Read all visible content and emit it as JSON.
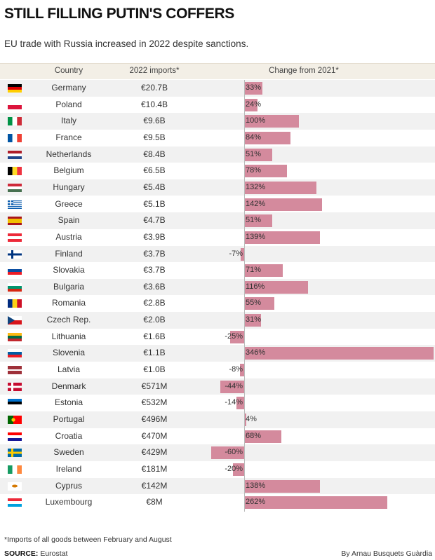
{
  "header": {
    "title": "STILL FILLING PUTIN'S COFFERS",
    "subtitle": "EU trade with Russia increased in 2022 despite sanctions."
  },
  "table": {
    "col_country": "Country",
    "col_imports": "2022 imports*",
    "col_change": "Change from 2021*"
  },
  "chart_data": {
    "type": "bar",
    "orientation": "horizontal",
    "title": "STILL FILLING PUTIN'S COFFERS",
    "subtitle": "EU trade with Russia increased in 2022 despite sanctions.",
    "xlabel": "Change from 2021*",
    "unit": "%",
    "categories": [
      "Germany",
      "Poland",
      "Italy",
      "France",
      "Netherlands",
      "Belgium",
      "Hungary",
      "Greece",
      "Spain",
      "Austria",
      "Finland",
      "Slovakia",
      "Bulgaria",
      "Romania",
      "Czech Rep.",
      "Lithuania",
      "Slovenia",
      "Latvia",
      "Denmark",
      "Estonia",
      "Portugal",
      "Croatia",
      "Sweden",
      "Ireland",
      "Cyprus",
      "Luxembourg"
    ],
    "imports": [
      "€20.7B",
      "€10.4B",
      "€9.6B",
      "€9.5B",
      "€8.4B",
      "€6.5B",
      "€5.4B",
      "€5.1B",
      "€4.7B",
      "€3.9B",
      "€3.7B",
      "€3.7B",
      "€3.6B",
      "€2.8B",
      "€2.0B",
      "€1.6B",
      "€1.1B",
      "€1.0B",
      "€571M",
      "€532M",
      "€496M",
      "€470M",
      "€429M",
      "€181M",
      "€142M",
      "€8M"
    ],
    "values": [
      33,
      24,
      100,
      84,
      51,
      78,
      132,
      142,
      51,
      139,
      -7,
      71,
      116,
      55,
      31,
      -25,
      346,
      -8,
      -44,
      -14,
      4,
      68,
      -60,
      -20,
      138,
      262
    ],
    "labels": [
      "33%",
      "24%",
      "100%",
      "84%",
      "51%",
      "78%",
      "132%",
      "142%",
      "51%",
      "139%",
      "-7%",
      "71%",
      "116%",
      "55%",
      "31%",
      "-25%",
      "346%",
      "-8%",
      "-44%",
      "-14%",
      "4%",
      "68%",
      "-60%",
      "-20%",
      "138%",
      "262%"
    ],
    "bar_color": "#d48a9d",
    "grid": false
  },
  "flags": {
    "Germany": {
      "dir": "h",
      "colors": [
        "#000000",
        "#dd0000",
        "#ffce00"
      ]
    },
    "Poland": {
      "dir": "h",
      "colors": [
        "#ffffff",
        "#dc143c"
      ]
    },
    "Italy": {
      "dir": "v",
      "colors": [
        "#009246",
        "#ffffff",
        "#ce2b37"
      ]
    },
    "France": {
      "dir": "v",
      "colors": [
        "#0055a4",
        "#ffffff",
        "#ef4135"
      ]
    },
    "Netherlands": {
      "dir": "h",
      "colors": [
        "#ae1c28",
        "#ffffff",
        "#21468b"
      ]
    },
    "Belgium": {
      "dir": "v",
      "colors": [
        "#000000",
        "#fdda24",
        "#ef3340"
      ]
    },
    "Hungary": {
      "dir": "h",
      "colors": [
        "#ce2939",
        "#ffffff",
        "#477050"
      ]
    },
    "Greece": {
      "dir": "stripes",
      "colors": [
        "#0d5eaf",
        "#ffffff"
      ]
    },
    "Spain": {
      "dir": "h3",
      "colors": [
        "#aa151b",
        "#f1bf00",
        "#aa151b"
      ]
    },
    "Austria": {
      "dir": "h",
      "colors": [
        "#ed2939",
        "#ffffff",
        "#ed2939"
      ]
    },
    "Finland": {
      "dir": "nordic",
      "colors": [
        "#ffffff",
        "#003580"
      ]
    },
    "Slovakia": {
      "dir": "h",
      "colors": [
        "#ffffff",
        "#0b4ea2",
        "#ee1c25"
      ]
    },
    "Bulgaria": {
      "dir": "h",
      "colors": [
        "#ffffff",
        "#00966e",
        "#d62612"
      ]
    },
    "Romania": {
      "dir": "v",
      "colors": [
        "#002b7f",
        "#fcd116",
        "#ce1126"
      ]
    },
    "Czech Rep.": {
      "dir": "czech",
      "colors": [
        "#ffffff",
        "#d7141a",
        "#11457e"
      ]
    },
    "Lithuania": {
      "dir": "h",
      "colors": [
        "#fdb913",
        "#006a44",
        "#c1272d"
      ]
    },
    "Slovenia": {
      "dir": "h",
      "colors": [
        "#ffffff",
        "#005da4",
        "#ed1c24"
      ]
    },
    "Latvia": {
      "dir": "latvia",
      "colors": [
        "#9e3039",
        "#ffffff"
      ]
    },
    "Denmark": {
      "dir": "nordic",
      "colors": [
        "#c60c30",
        "#ffffff"
      ]
    },
    "Estonia": {
      "dir": "h",
      "colors": [
        "#0072ce",
        "#000000",
        "#ffffff"
      ]
    },
    "Portugal": {
      "dir": "portugal",
      "colors": [
        "#006600",
        "#ff0000"
      ]
    },
    "Croatia": {
      "dir": "h",
      "colors": [
        "#ff0000",
        "#ffffff",
        "#171796"
      ]
    },
    "Sweden": {
      "dir": "nordic",
      "colors": [
        "#006aa7",
        "#fecc00"
      ]
    },
    "Ireland": {
      "dir": "v",
      "colors": [
        "#169b62",
        "#ffffff",
        "#ff883e"
      ]
    },
    "Cyprus": {
      "dir": "cyprus",
      "colors": [
        "#ffffff",
        "#d57800"
      ]
    },
    "Luxembourg": {
      "dir": "h",
      "colors": [
        "#ed2939",
        "#ffffff",
        "#00a1de"
      ]
    }
  },
  "footer": {
    "footnote": "*Imports of all goods between February and August",
    "source_label": "SOURCE:",
    "source_value": "Eurostat",
    "byline": "By Arnau Busquets Guàrdia"
  }
}
